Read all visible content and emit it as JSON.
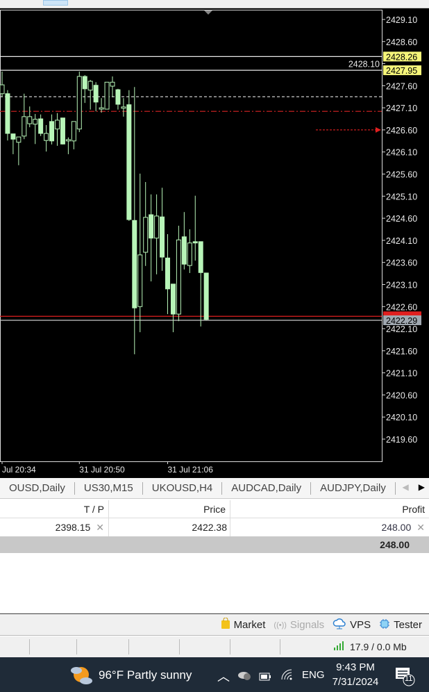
{
  "chart_data": {
    "type": "candlestick",
    "price_axis": {
      "ticks": [
        2429.1,
        2428.6,
        2428.1,
        2427.6,
        2427.1,
        2426.6,
        2426.1,
        2425.6,
        2425.1,
        2424.6,
        2424.1,
        2423.6,
        2423.1,
        2422.6,
        2422.1,
        2421.6,
        2421.1,
        2420.6,
        2420.1,
        2419.6
      ],
      "tick_labels": [
        "2429.10",
        "2428.60",
        "2428.10",
        "2427.60",
        "2427.10",
        "2426.60",
        "2426.10",
        "2425.60",
        "2425.10",
        "2424.60",
        "2424.10",
        "2423.60",
        "2423.10",
        "2422.60",
        "2422.10",
        "2421.60",
        "2421.10",
        "2420.60",
        "2420.10",
        "2419.60"
      ],
      "range": [
        2419.2,
        2429.32
      ]
    },
    "time_labels": [
      {
        "label": "Jul 20:34",
        "index": 0
      },
      {
        "label": "31 Jul 20:50",
        "index": 14
      },
      {
        "label": "31 Jul 21:06",
        "index": 30
      }
    ],
    "candles": [
      [
        2427.42,
        2427.92,
        2427.34,
        2427.62
      ],
      [
        2427.42,
        2427.5,
        2426.36,
        2426.52
      ],
      [
        2426.51,
        2426.51,
        2426.05,
        2426.39
      ],
      [
        2426.32,
        2426.44,
        2425.8,
        2426.44
      ],
      [
        2426.46,
        2427.42,
        2426.39,
        2426.9
      ],
      [
        2426.74,
        2427.13,
        2426.66,
        2426.9
      ],
      [
        2426.73,
        2426.96,
        2426.28,
        2426.84
      ],
      [
        2426.85,
        2426.95,
        2426.46,
        2426.52
      ],
      [
        2426.36,
        2426.71,
        2426.11,
        2426.52
      ],
      [
        2426.79,
        2426.95,
        2426.27,
        2426.35
      ],
      [
        2426.62,
        2426.98,
        2426.24,
        2426.82
      ],
      [
        2426.87,
        2426.87,
        2426.27,
        2426.28
      ],
      [
        2426.35,
        2426.43,
        2426.05,
        2426.38
      ],
      [
        2426.35,
        2426.79,
        2426.16,
        2426.79
      ],
      [
        2426.62,
        2427.92,
        2426.55,
        2427.81
      ],
      [
        2427.81,
        2427.84,
        2427.21,
        2427.53
      ],
      [
        2427.5,
        2427.73,
        2427.06,
        2427.7
      ],
      [
        2427.61,
        2427.68,
        2427.02,
        2427.23
      ],
      [
        2427.07,
        2427.32,
        2426.99,
        2427.1
      ],
      [
        2427.07,
        2427.68,
        2427.07,
        2427.68
      ],
      [
        2427.59,
        2427.81,
        2427.34,
        2427.68
      ],
      [
        2427.51,
        2427.53,
        2427.06,
        2427.18
      ],
      [
        2427.09,
        2427.32,
        2426.9,
        2427.12
      ],
      [
        2427.17,
        2427.5,
        2424.54,
        2424.57
      ],
      [
        2424.55,
        2427.57,
        2421.52,
        2422.57
      ],
      [
        2422.6,
        2425.61,
        2422.02,
        2423.77
      ],
      [
        2423.83,
        2425.42,
        2423.52,
        2424.62
      ],
      [
        2424.68,
        2425.14,
        2423.17,
        2424.15
      ],
      [
        2424.15,
        2425.14,
        2423.33,
        2424.65
      ],
      [
        2424.63,
        2425.29,
        2423.41,
        2423.72
      ],
      [
        2423.7,
        2424.24,
        2422.43,
        2423.0
      ],
      [
        2423.11,
        2423.11,
        2422.02,
        2422.43
      ],
      [
        2422.43,
        2424.43,
        2422.27,
        2424.11
      ],
      [
        2424.18,
        2424.74,
        2423.44,
        2423.56
      ],
      [
        2423.53,
        2424.35,
        2423.36,
        2424.04
      ],
      [
        2424.07,
        2425.11,
        2423.64,
        2424.04
      ],
      [
        2424.07,
        2424.07,
        2422.15,
        2423.37
      ],
      [
        2423.36,
        2423.36,
        2422.29,
        2422.31
      ]
    ],
    "candle_fields": [
      "open",
      "high",
      "low",
      "close"
    ],
    "levels": [
      {
        "price": 2428.26,
        "label": "2428.26",
        "style": "solid",
        "color": "#e8e8e8",
        "label_bg": "#f5f57a"
      },
      {
        "price": 2427.95,
        "label": "2427.95",
        "style": "solid",
        "color": "#e8e8e8",
        "label_bg": "#f5f57a"
      },
      {
        "price": 2427.35,
        "style": "dashed",
        "color": "#cccccc"
      },
      {
        "price": 2427.02,
        "style": "dashdot",
        "color": "#c02020"
      },
      {
        "price": 2426.6,
        "style": "dotted-short",
        "color": "#e02020"
      },
      {
        "price": 2422.38,
        "style": "solid",
        "color": "#e02020",
        "label_bg": "#e02020"
      },
      {
        "price": 2422.29,
        "label": "2422.29",
        "style": "solid",
        "color": "#c8c8c8",
        "label_bg": "#a0a8b0"
      }
    ],
    "colors": {
      "background": "#000000",
      "candle": "#b8f5b8",
      "axis_text": "#e8e8e8"
    }
  },
  "tabs": [
    "OUSD,Daily",
    "US30,M15",
    "UKOUSD,H4",
    "AUDCAD,Daily",
    "AUDJPY,Daily",
    "."
  ],
  "table": {
    "headers": {
      "tp": "T / P",
      "price": "Price",
      "profit": "Profit"
    },
    "row": {
      "tp": "2398.15",
      "price": "2422.38",
      "profit": "248.00"
    },
    "total": "248.00"
  },
  "bottombar": {
    "market": "Market",
    "signals": "Signals",
    "vps": "VPS",
    "tester": "Tester"
  },
  "status": {
    "traffic": "17.9 / 0.0 Mb"
  },
  "taskbar": {
    "weather": "96°F  Partly sunny",
    "lang": "ENG",
    "time": "9:43 PM",
    "date": "7/31/2024",
    "notifications": "11"
  }
}
